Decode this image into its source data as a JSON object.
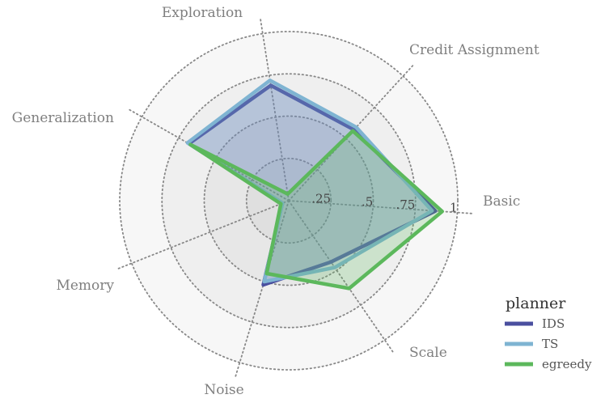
{
  "chart_data": {
    "type": "radar",
    "axes": [
      "Basic",
      "Credit Assignment",
      "Exploration",
      "Generalization",
      "Memory",
      "Noise",
      "Scale"
    ],
    "ring_values": [
      0.25,
      0.5,
      0.75,
      1.0
    ],
    "ring_labels": [
      ".25",
      ".5",
      ".75",
      "1"
    ],
    "range": [
      0,
      1
    ],
    "grid": true,
    "series": [
      {
        "name": "IDS",
        "color": "#4a4f9f",
        "values": [
          0.87,
          0.57,
          0.69,
          0.68,
          0.04,
          0.52,
          0.44
        ]
      },
      {
        "name": "TS",
        "color": "#7fb4d2",
        "values": [
          0.85,
          0.59,
          0.72,
          0.69,
          0.04,
          0.5,
          0.48
        ]
      },
      {
        "name": "egreedy",
        "color": "#5cb85c",
        "values": [
          0.91,
          0.56,
          0.04,
          0.67,
          0.05,
          0.45,
          0.63
        ]
      }
    ],
    "legend": {
      "title": "planner",
      "position": "bottom-right"
    }
  }
}
